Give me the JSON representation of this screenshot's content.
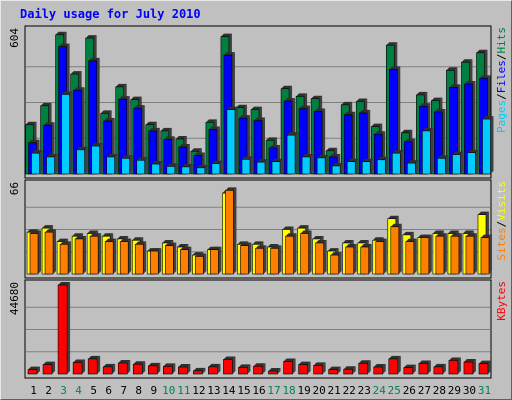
{
  "chart_data": {
    "title": "Daily usage for July 2010",
    "x": [
      "1",
      "2",
      "3",
      "4",
      "5",
      "6",
      "7",
      "8",
      "9",
      "10",
      "11",
      "12",
      "13",
      "14",
      "15",
      "16",
      "17",
      "18",
      "19",
      "20",
      "21",
      "22",
      "23",
      "24",
      "25",
      "26",
      "27",
      "28",
      "29",
      "30",
      "31"
    ],
    "weekend_days": [
      "3",
      "4",
      "10",
      "11",
      "17",
      "18",
      "24",
      "25",
      "31"
    ],
    "panels": [
      {
        "type": "bar",
        "ylim": [
          0,
          604
        ],
        "tick_label": "604",
        "right_label": [
          "Pages",
          "/",
          "Files",
          "/",
          "Hits"
        ],
        "right_label_colors": [
          "#00ccff",
          "#000000",
          "#0000ff",
          "#000000",
          "#008040"
        ],
        "series": [
          {
            "name": "Hits",
            "color": "#008040",
            "values": [
              208,
              288,
              588,
              422,
              574,
              256,
              368,
              314,
              208,
              182,
              148,
              96,
              218,
              580,
              280,
              272,
              142,
              360,
              328,
              318,
              98,
              292,
              306,
              200,
              544,
              174,
              334,
              310,
              438,
              472,
              512
            ]
          },
          {
            "name": "Files",
            "color": "#0000ff",
            "values": [
              132,
              206,
              538,
              354,
              478,
              224,
              316,
              278,
              182,
              146,
              114,
              78,
              188,
              502,
              236,
              226,
              110,
              308,
              276,
              264,
              72,
              250,
              258,
              168,
              442,
              136,
              286,
              262,
              366,
              380,
              404
            ]
          },
          {
            "name": "Pages",
            "color": "#00ccff",
            "values": [
              88,
              72,
              336,
              102,
              118,
              72,
              66,
              58,
              42,
              32,
              30,
              26,
              44,
              272,
              62,
              50,
              52,
              164,
              72,
              68,
              34,
              52,
              52,
              60,
              88,
              46,
              182,
              66,
              82,
              90,
              232
            ]
          }
        ]
      },
      {
        "type": "bar",
        "ylim": [
          0,
          66
        ],
        "tick_label": "66",
        "right_label": [
          "Sites",
          "/",
          "Visits"
        ],
        "right_label_colors": [
          "#ff8000",
          "#000000",
          "#ffff00"
        ],
        "series": [
          {
            "name": "Visits",
            "color": "#ffff00",
            "values": [
              31,
              34,
              24,
              28,
              30,
              28,
              26,
              25,
              17,
              23,
              20,
              14,
              18,
              60,
              22,
              22,
              20,
              33,
              34,
              26,
              17,
              23,
              23,
              25,
              41,
              29,
              27,
              30,
              30,
              30,
              44
            ]
          },
          {
            "name": "Sites",
            "color": "#ff8000",
            "values": [
              30,
              31,
              22,
              26,
              28,
              24,
              24,
              22,
              17,
              21,
              18,
              13,
              18,
              62,
              21,
              19,
              19,
              28,
              30,
              23,
              14,
              20,
              20,
              24,
              35,
              24,
              27,
              28,
              28,
              28,
              27
            ]
          }
        ]
      },
      {
        "type": "bar",
        "ylim": [
          0,
          44680
        ],
        "tick_label": "44680",
        "right_label": [
          "KBytes"
        ],
        "right_label_colors": [
          "#ff0000"
        ],
        "series": [
          {
            "name": "KBytes",
            "color": "#ff0000",
            "values": [
              2200,
              4700,
              44680,
              5800,
              7600,
              3600,
              5500,
              4900,
              4100,
              3800,
              3500,
              1600,
              3600,
              7300,
              3300,
              3900,
              1500,
              6300,
              4700,
              4300,
              2200,
              2400,
              5400,
              3500,
              7600,
              3200,
              5300,
              3600,
              6800,
              6000,
              5200
            ]
          }
        ]
      }
    ]
  }
}
